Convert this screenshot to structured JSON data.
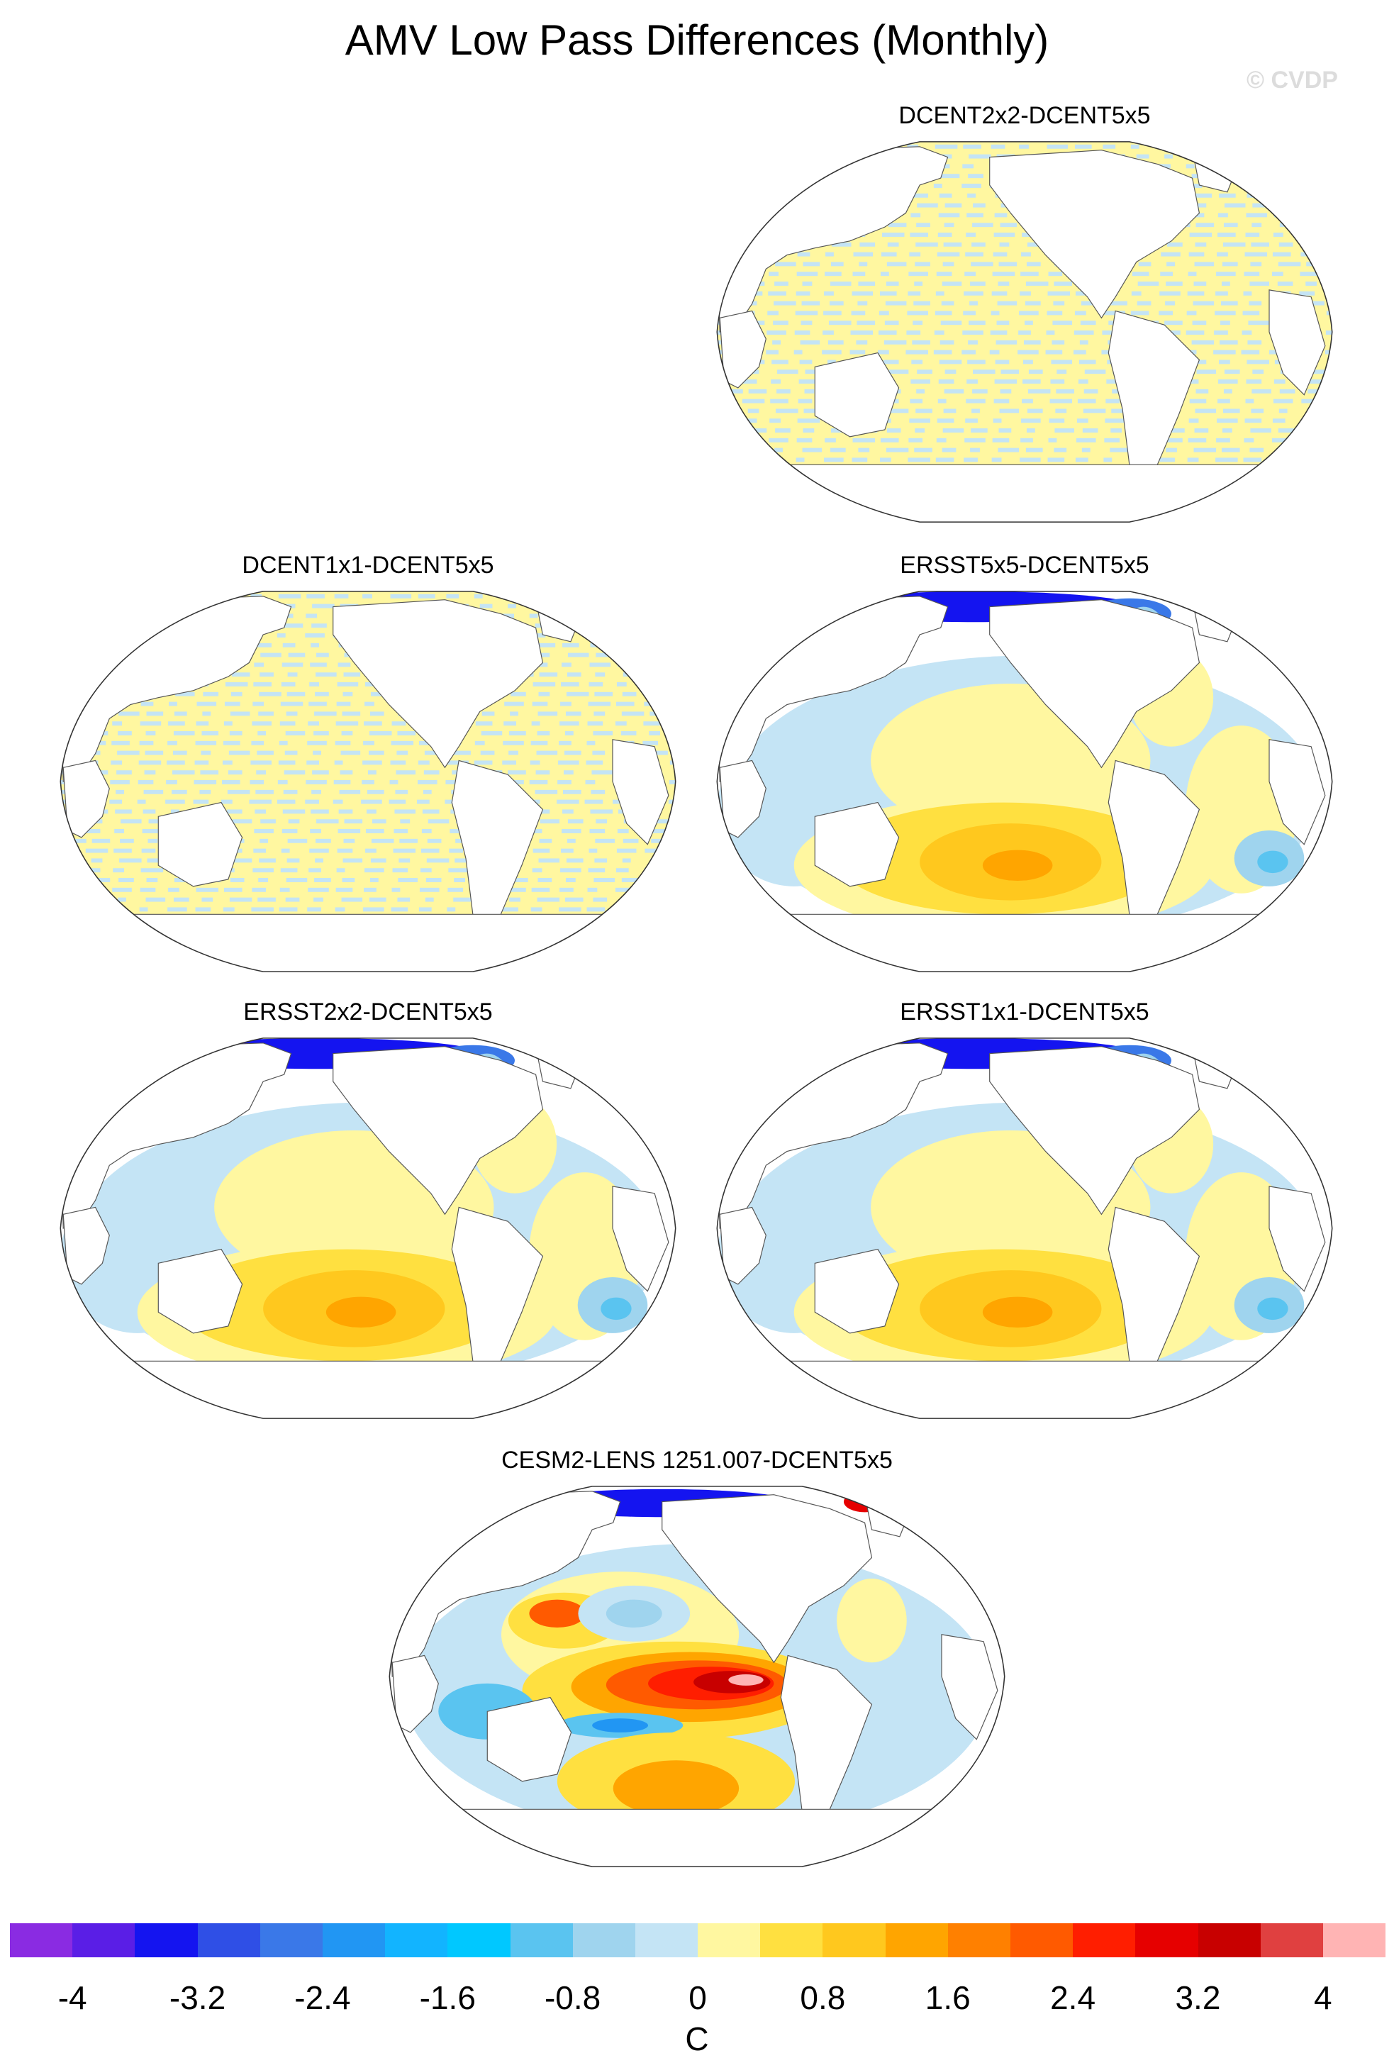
{
  "title": "AMV Low Pass Differences (Monthly)",
  "watermark": "© CVDP",
  "panels": [
    {
      "name": "panel-dcent2x2",
      "title": "DCENT2x2-DCENT5x5",
      "pattern": "stripes"
    },
    {
      "name": "panel-dcent1x1",
      "title": "DCENT1x1-DCENT5x5",
      "pattern": "stripes"
    },
    {
      "name": "panel-ersst5x5",
      "title": "ERSST5x5-DCENT5x5",
      "pattern": "ersst"
    },
    {
      "name": "panel-ersst2x2",
      "title": "ERSST2x2-DCENT5x5",
      "pattern": "ersst"
    },
    {
      "name": "panel-ersst1x1",
      "title": "ERSST1x1-DCENT5x5",
      "pattern": "ersst"
    },
    {
      "name": "panel-cesm2",
      "title": "CESM2-LENS 1251.007-DCENT5x5",
      "pattern": "cesm"
    }
  ],
  "colorbar": {
    "unit": "C",
    "colors": [
      "#8a2be2",
      "#5a1ee6",
      "#1414f0",
      "#2f4fe6",
      "#3a78e8",
      "#2196f3",
      "#12b4ff",
      "#00c8ff",
      "#5ac4f0",
      "#9fd4ee",
      "#c4e4f5",
      "#fff7a0",
      "#ffe040",
      "#ffc81e",
      "#ffa500",
      "#ff8000",
      "#ff5a00",
      "#ff1e00",
      "#e60000",
      "#c80000",
      "#e04040",
      "#ffb4b4"
    ],
    "ticks": [
      {
        "value": -4,
        "label": "-4"
      },
      {
        "value": -3.2,
        "label": "-3.2"
      },
      {
        "value": -2.4,
        "label": "-2.4"
      },
      {
        "value": -1.6,
        "label": "-1.6"
      },
      {
        "value": -0.8,
        "label": "-0.8"
      },
      {
        "value": 0,
        "label": "0"
      },
      {
        "value": 0.8,
        "label": "0.8"
      },
      {
        "value": 1.6,
        "label": "1.6"
      },
      {
        "value": 2.4,
        "label": "2.4"
      },
      {
        "value": 3.2,
        "label": "3.2"
      },
      {
        "value": 4,
        "label": "4"
      }
    ]
  }
}
